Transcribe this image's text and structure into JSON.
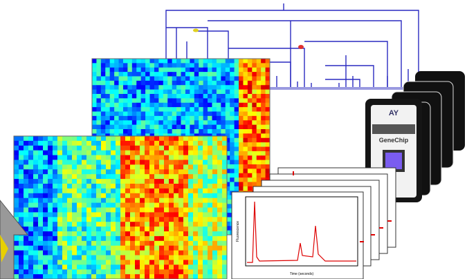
{
  "cartridge": {
    "brand": "GeneChip"
  },
  "chromatogram": {
    "x_label": "Time (seconds)",
    "y_label": "Fluorescence"
  }
}
